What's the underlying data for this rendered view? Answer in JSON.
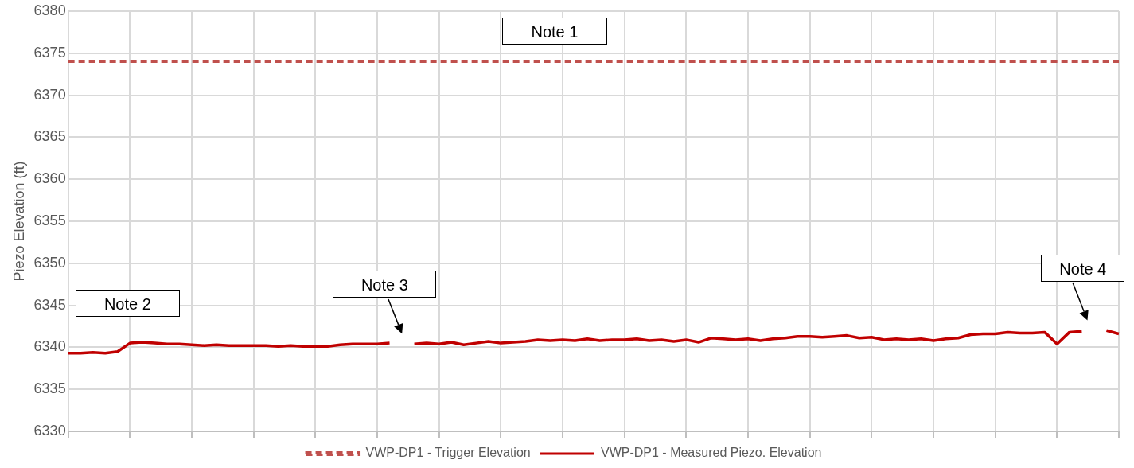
{
  "chart_data": {
    "type": "line",
    "ylabel": "Piezo Elevation (ft)",
    "categories": [
      null,
      null,
      null,
      null,
      null,
      null,
      null,
      null,
      null,
      null,
      null,
      null,
      null,
      null,
      null,
      null,
      null,
      null,
      null,
      null,
      null,
      null,
      null,
      null,
      null,
      null,
      null,
      null,
      null,
      null,
      null,
      null,
      null,
      null,
      null,
      null,
      null,
      null,
      null,
      null,
      null,
      null,
      null,
      null,
      null,
      null,
      null,
      null,
      null,
      null,
      null,
      null,
      null,
      null,
      null,
      null,
      null,
      null,
      null,
      null,
      null,
      null,
      null,
      null,
      null,
      null,
      null,
      null,
      null,
      null,
      null,
      null,
      null,
      null,
      null,
      null,
      null,
      null,
      null,
      null,
      null,
      null,
      null,
      null,
      null,
      null
    ],
    "series": [
      {
        "name": "VWP-DP1 - Trigger Elevation",
        "color": "#c0504d",
        "line_style": "dashed",
        "values": [
          6374,
          6374,
          6374,
          6374,
          6374,
          6374,
          6374,
          6374,
          6374,
          6374,
          6374,
          6374,
          6374,
          6374,
          6374,
          6374,
          6374,
          6374,
          6374,
          6374,
          6374,
          6374,
          6374,
          6374,
          6374,
          6374,
          6374,
          6374,
          6374,
          6374,
          6374,
          6374,
          6374,
          6374,
          6374,
          6374,
          6374,
          6374,
          6374,
          6374,
          6374,
          6374,
          6374,
          6374,
          6374,
          6374,
          6374,
          6374,
          6374,
          6374,
          6374,
          6374,
          6374,
          6374,
          6374,
          6374,
          6374,
          6374,
          6374,
          6374,
          6374,
          6374,
          6374,
          6374,
          6374,
          6374,
          6374,
          6374,
          6374,
          6374,
          6374,
          6374,
          6374,
          6374,
          6374,
          6374,
          6374,
          6374,
          6374,
          6374,
          6374,
          6374,
          6374,
          6374,
          6374,
          6374
        ]
      },
      {
        "name": "VWP-DP1 - Measured Piezo. Elevation",
        "color": "#c00000",
        "line_style": "solid",
        "values": [
          6339.3,
          6339.3,
          6339.4,
          6339.3,
          6339.5,
          6340.5,
          6340.6,
          6340.5,
          6340.4,
          6340.4,
          6340.3,
          6340.2,
          6340.3,
          6340.2,
          6340.2,
          6340.2,
          6340.2,
          6340.1,
          6340.2,
          6340.1,
          6340.1,
          6340.1,
          6340.3,
          6340.4,
          6340.4,
          6340.4,
          6340.5,
          null,
          6340.4,
          6340.5,
          6340.4,
          6340.6,
          6340.3,
          6340.5,
          6340.7,
          6340.5,
          6340.6,
          6340.7,
          6340.9,
          6340.8,
          6340.9,
          6340.8,
          6341.0,
          6340.8,
          6340.9,
          6340.9,
          6341.0,
          6340.8,
          6340.9,
          6340.7,
          6340.9,
          6340.6,
          6341.1,
          6341.0,
          6340.9,
          6341.0,
          6340.8,
          6341.0,
          6341.1,
          6341.3,
          6341.3,
          6341.2,
          6341.3,
          6341.4,
          6341.1,
          6341.2,
          6340.9,
          6341.0,
          6340.9,
          6341.0,
          6340.8,
          6341.0,
          6341.1,
          6341.5,
          6341.6,
          6341.6,
          6341.8,
          6341.7,
          6341.7,
          6341.8,
          6340.4,
          6341.8,
          6341.9,
          null,
          6342.0,
          6341.6
        ]
      }
    ],
    "ylim": [
      6330,
      6380
    ],
    "yticks": [
      6330,
      6335,
      6340,
      6345,
      6350,
      6355,
      6360,
      6365,
      6370,
      6375,
      6380
    ],
    "grid": true,
    "legend": "bottom",
    "tick_labels": "y",
    "marker": "none",
    "annotations": [
      "Note 1",
      "Note 2",
      "Note 3",
      "Note 4"
    ]
  }
}
